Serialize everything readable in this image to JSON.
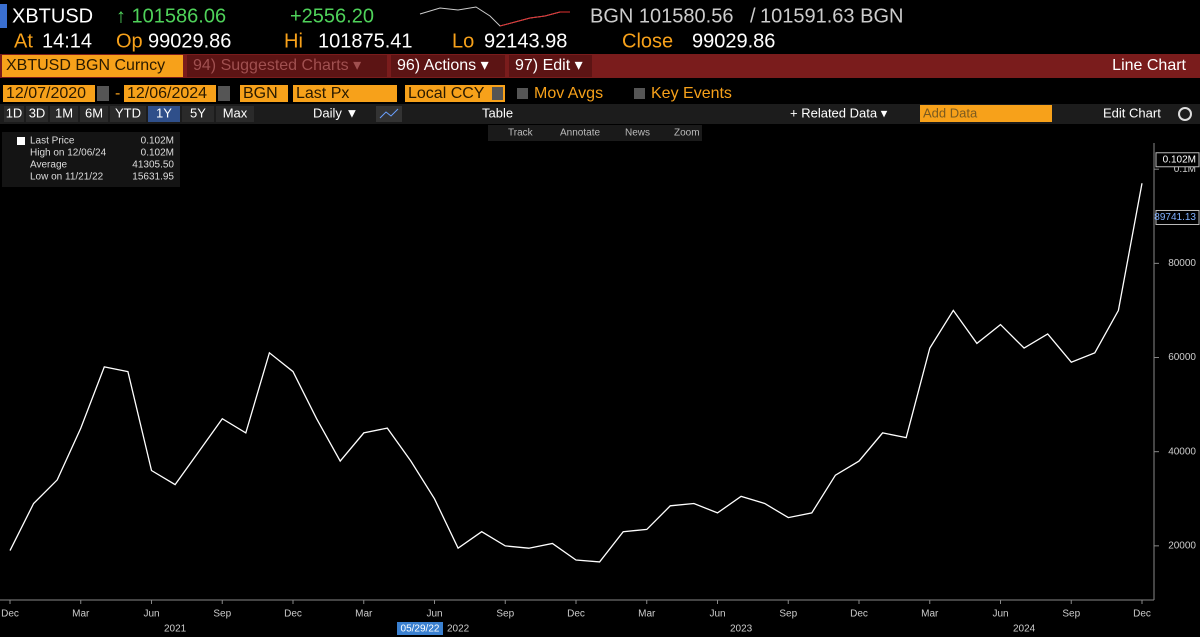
{
  "header": {
    "ticker": "XBTUSD",
    "last": "↑ 101586.06",
    "change": "+2556.20",
    "bid": "BGN 101580.56",
    "separator": "/",
    "ask": "101591.63 BGN",
    "at_label": "At",
    "at": "14:14",
    "open_label": "Op",
    "open": "99029.86",
    "high_label": "Hi",
    "high": "101875.41",
    "low_label": "Lo",
    "low": "92143.98",
    "close_label": "Close",
    "close": "99029.86"
  },
  "menu": {
    "security": "XBTUSD BGN Curncy",
    "suggested": "94) Suggested Charts ▾",
    "actions": "96) Actions ▾",
    "edit": "97) Edit ▾",
    "chart_kind": "Line Chart"
  },
  "settings": {
    "start": "12/07/2020",
    "dash": "-",
    "end": "12/06/2024",
    "source": "BGN",
    "field": "Last Px",
    "currency": "Local CCY",
    "mov_avgs": "Mov Avgs",
    "key_events": "Key Events"
  },
  "toolbar": {
    "periods": [
      "1D",
      "3D",
      "1M",
      "6M",
      "YTD",
      "1Y",
      "5Y",
      "Max"
    ],
    "frequency": "Daily ▼",
    "table": "Table",
    "related": "+ Related Data ▾",
    "add_data": "Add Data",
    "edit_chart": "Edit Chart",
    "tools": [
      "Track",
      "Annotate",
      "News",
      "Zoom"
    ]
  },
  "legend": {
    "rows": [
      [
        "Last Price",
        "0.102M"
      ],
      [
        "High on 12/06/24",
        "0.102M"
      ],
      [
        "Average",
        "41305.50"
      ],
      [
        "Low on 11/21/22",
        "15631.95"
      ]
    ]
  },
  "cursor_date": "05/29/22",
  "chart_data": {
    "type": "line",
    "x": [
      "2020-12",
      "2021-01",
      "2021-02",
      "2021-03",
      "2021-04",
      "2021-05",
      "2021-06",
      "2021-07",
      "2021-08",
      "2021-09",
      "2021-10",
      "2021-11",
      "2021-12",
      "2022-01",
      "2022-02",
      "2022-03",
      "2022-04",
      "2022-05",
      "2022-06",
      "2022-07",
      "2022-08",
      "2022-09",
      "2022-10",
      "2022-11",
      "2022-12",
      "2023-01",
      "2023-02",
      "2023-03",
      "2023-04",
      "2023-05",
      "2023-06",
      "2023-07",
      "2023-08",
      "2023-09",
      "2023-10",
      "2023-11",
      "2023-12",
      "2024-01",
      "2024-02",
      "2024-03",
      "2024-04",
      "2024-05",
      "2024-06",
      "2024-07",
      "2024-08",
      "2024-09",
      "2024-10",
      "2024-11",
      "2024-12"
    ],
    "series": [
      {
        "name": "Last Price",
        "color": "#ffffff",
        "values": [
          19000,
          29000,
          34000,
          45000,
          58000,
          57000,
          36000,
          33000,
          40000,
          47000,
          44000,
          61000,
          57000,
          47000,
          38000,
          44000,
          45000,
          38000,
          30000,
          19500,
          23000,
          20000,
          19500,
          20500,
          17000,
          16600,
          23000,
          23500,
          28500,
          29000,
          27000,
          30500,
          29000,
          26000,
          27000,
          35000,
          38000,
          44000,
          43000,
          62000,
          70000,
          63000,
          67000,
          62000,
          65000,
          59000,
          61000,
          70000,
          97000
        ]
      }
    ],
    "xlim": [
      "2020-12",
      "2024-12"
    ],
    "xticks": [
      {
        "value": "2020-12",
        "label": "Dec"
      },
      {
        "value": "2021-03",
        "label": "Mar"
      },
      {
        "value": "2021-06",
        "label": "Jun"
      },
      {
        "value": "2021-09",
        "label": "Sep"
      },
      {
        "value": "2021-12",
        "label": "Dec"
      },
      {
        "value": "2022-03",
        "label": "Mar"
      },
      {
        "value": "2022-06",
        "label": "Jun"
      },
      {
        "value": "2022-09",
        "label": "Sep"
      },
      {
        "value": "2022-12",
        "label": "Dec"
      },
      {
        "value": "2023-03",
        "label": "Mar"
      },
      {
        "value": "2023-06",
        "label": "Jun"
      },
      {
        "value": "2023-09",
        "label": "Sep"
      },
      {
        "value": "2023-12",
        "label": "Dec"
      },
      {
        "value": "2024-03",
        "label": "Mar"
      },
      {
        "value": "2024-06",
        "label": "Jun"
      },
      {
        "value": "2024-09",
        "label": "Sep"
      },
      {
        "value": "2024-12",
        "label": "Dec"
      }
    ],
    "year_labels": [
      {
        "value": "2021-07",
        "label": "2021"
      },
      {
        "value": "2022-07",
        "label": "2022"
      },
      {
        "value": "2023-07",
        "label": "2023"
      },
      {
        "value": "2024-07",
        "label": "2024"
      }
    ],
    "ylim": [
      8500,
      104500
    ],
    "yticks": [
      20000,
      40000,
      60000,
      80000,
      {
        "value": 100000,
        "label": "0.1M"
      }
    ],
    "price_tags": [
      {
        "value": 102000,
        "label": "0.102M"
      },
      {
        "value": 89741.13,
        "label": "89741.13"
      }
    ],
    "grid": false
  }
}
